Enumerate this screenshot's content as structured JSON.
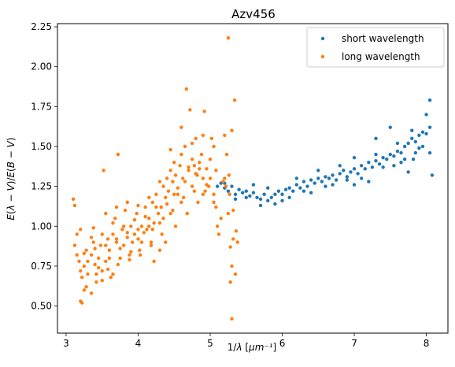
{
  "chart_data": {
    "type": "scatter",
    "title": "Azv456",
    "xlabel": "1/λ [μm⁻¹]",
    "ylabel": "E(λ − V)/E(B − V)",
    "xlim": [
      2.88,
      8.3
    ],
    "ylim": [
      0.33,
      2.27
    ],
    "xticks": [
      3,
      4,
      5,
      6,
      7,
      8
    ],
    "yticks": [
      0.5,
      0.75,
      1.0,
      1.25,
      1.5,
      1.75,
      2.0,
      2.25
    ],
    "xtick_labels": [
      "3",
      "4",
      "5",
      "6",
      "7",
      "8"
    ],
    "ytick_labels": [
      "0.50",
      "0.75",
      "1.00",
      "1.25",
      "1.50",
      "1.75",
      "2.00",
      "2.25"
    ],
    "legend_position": "top-right",
    "series": [
      {
        "name": "short wavelength",
        "color": "#1f77b4",
        "points": [
          [
            5.1,
            1.25
          ],
          [
            5.15,
            1.27
          ],
          [
            5.2,
            1.24
          ],
          [
            5.25,
            1.22
          ],
          [
            5.3,
            1.25
          ],
          [
            5.35,
            1.2
          ],
          [
            5.4,
            1.23
          ],
          [
            5.45,
            1.21
          ],
          [
            5.5,
            1.22
          ],
          [
            5.55,
            1.19
          ],
          [
            5.6,
            1.21
          ],
          [
            5.65,
            1.18
          ],
          [
            5.7,
            1.17
          ],
          [
            5.75,
            1.2
          ],
          [
            5.8,
            1.16
          ],
          [
            5.85,
            1.18
          ],
          [
            5.9,
            1.2
          ],
          [
            5.95,
            1.22
          ],
          [
            6.0,
            1.2
          ],
          [
            6.05,
            1.23
          ],
          [
            6.1,
            1.24
          ],
          [
            6.15,
            1.22
          ],
          [
            6.2,
            1.26
          ],
          [
            6.25,
            1.24
          ],
          [
            6.3,
            1.28
          ],
          [
            6.35,
            1.25
          ],
          [
            6.4,
            1.29
          ],
          [
            6.45,
            1.27
          ],
          [
            6.5,
            1.3
          ],
          [
            6.55,
            1.28
          ],
          [
            6.6,
            1.31
          ],
          [
            6.65,
            1.3
          ],
          [
            6.7,
            1.32
          ],
          [
            6.75,
            1.29
          ],
          [
            6.8,
            1.33
          ],
          [
            6.85,
            1.35
          ],
          [
            6.9,
            1.31
          ],
          [
            6.95,
            1.34
          ],
          [
            7.0,
            1.36
          ],
          [
            7.05,
            1.33
          ],
          [
            7.1,
            1.38
          ],
          [
            7.15,
            1.36
          ],
          [
            7.2,
            1.4
          ],
          [
            7.25,
            1.37
          ],
          [
            7.3,
            1.41
          ],
          [
            7.35,
            1.39
          ],
          [
            7.4,
            1.43
          ],
          [
            7.45,
            1.42
          ],
          [
            7.5,
            1.45
          ],
          [
            7.55,
            1.44
          ],
          [
            7.6,
            1.47
          ],
          [
            7.65,
            1.46
          ],
          [
            7.7,
            1.5
          ],
          [
            7.75,
            1.52
          ],
          [
            7.8,
            1.55
          ],
          [
            7.85,
            1.53
          ],
          [
            7.9,
            1.57
          ],
          [
            7.95,
            1.59
          ],
          [
            8.0,
            1.58
          ],
          [
            8.05,
            1.62
          ],
          [
            5.2,
            1.27
          ],
          [
            5.5,
            1.18
          ],
          [
            5.7,
            1.13
          ],
          [
            6.0,
            1.16
          ],
          [
            6.3,
            1.22
          ],
          [
            6.6,
            1.25
          ],
          [
            6.9,
            1.29
          ],
          [
            7.1,
            1.3
          ],
          [
            7.4,
            1.37
          ],
          [
            7.7,
            1.42
          ],
          [
            7.9,
            1.49
          ],
          [
            6.2,
            1.3
          ],
          [
            6.5,
            1.35
          ],
          [
            6.8,
            1.38
          ],
          [
            7.0,
            1.43
          ],
          [
            7.3,
            1.45
          ],
          [
            7.6,
            1.52
          ],
          [
            7.8,
            1.6
          ],
          [
            8.0,
            1.7
          ],
          [
            8.05,
            1.79
          ],
          [
            7.5,
            1.62
          ],
          [
            7.3,
            1.55
          ],
          [
            7.2,
            1.28
          ],
          [
            7.65,
            1.4
          ],
          [
            7.75,
            1.34
          ],
          [
            8.08,
            1.32
          ],
          [
            8.05,
            1.46
          ],
          [
            7.95,
            1.5
          ],
          [
            7.82,
            1.42
          ],
          [
            6.4,
            1.21
          ],
          [
            5.6,
            1.26
          ],
          [
            5.8,
            1.24
          ],
          [
            5.9,
            1.14
          ],
          [
            6.1,
            1.18
          ],
          [
            6.7,
            1.26
          ],
          [
            7.0,
            1.26
          ],
          [
            7.55,
            1.38
          ],
          [
            7.85,
            1.46
          ],
          [
            5.35,
            1.17
          ]
        ]
      },
      {
        "name": "long wavelength",
        "color": "#ff7f0e",
        "points": [
          [
            3.1,
            1.17
          ],
          [
            3.12,
            1.13
          ],
          [
            3.15,
            0.95
          ],
          [
            3.18,
            0.78
          ],
          [
            3.2,
            0.72
          ],
          [
            3.22,
            0.68
          ],
          [
            3.25,
            0.6
          ],
          [
            3.22,
            0.52
          ],
          [
            3.2,
            0.53
          ],
          [
            3.25,
            0.75
          ],
          [
            3.28,
            0.85
          ],
          [
            3.3,
            0.7
          ],
          [
            3.35,
            0.82
          ],
          [
            3.38,
            0.9
          ],
          [
            3.4,
            0.76
          ],
          [
            3.42,
            0.65
          ],
          [
            3.45,
            0.8
          ],
          [
            3.48,
            0.88
          ],
          [
            3.5,
            0.72
          ],
          [
            3.52,
            1.35
          ],
          [
            3.55,
            0.78
          ],
          [
            3.58,
            0.92
          ],
          [
            3.6,
            0.85
          ],
          [
            3.62,
            0.68
          ],
          [
            3.65,
            0.95
          ],
          [
            3.68,
            1.05
          ],
          [
            3.7,
            0.9
          ],
          [
            3.72,
            1.45
          ],
          [
            3.75,
            0.8
          ],
          [
            3.78,
            0.98
          ],
          [
            3.8,
            0.88
          ],
          [
            3.82,
            1.1
          ],
          [
            3.85,
            0.93
          ],
          [
            3.88,
            0.82
          ],
          [
            3.9,
            1.0
          ],
          [
            3.92,
            0.9
          ],
          [
            3.95,
            0.95
          ],
          [
            3.98,
            1.08
          ],
          [
            4.0,
            0.92
          ],
          [
            4.02,
            0.85
          ],
          [
            4.05,
            1.0
          ],
          [
            4.08,
            0.96
          ],
          [
            4.1,
            1.12
          ],
          [
            4.12,
            0.98
          ],
          [
            4.15,
            1.05
          ],
          [
            4.18,
            0.9
          ],
          [
            4.2,
            1.15
          ],
          [
            4.22,
            1.02
          ],
          [
            4.25,
            1.2
          ],
          [
            4.28,
            1.08
          ],
          [
            4.3,
            0.85
          ],
          [
            4.32,
            1.12
          ],
          [
            4.35,
            1.25
          ],
          [
            4.38,
            1.18
          ],
          [
            4.4,
            1.3
          ],
          [
            4.42,
            1.22
          ],
          [
            4.45,
            1.35
          ],
          [
            4.48,
            1.28
          ],
          [
            4.5,
            1.4
          ],
          [
            4.52,
            1.32
          ],
          [
            4.55,
            1.2
          ],
          [
            4.58,
            1.38
          ],
          [
            4.6,
            1.45
          ],
          [
            4.62,
            1.3
          ],
          [
            4.65,
            1.5
          ],
          [
            4.67,
            1.86
          ],
          [
            4.7,
            1.35
          ],
          [
            4.72,
            1.73
          ],
          [
            4.75,
            1.42
          ],
          [
            4.78,
            1.38
          ],
          [
            4.8,
            1.55
          ],
          [
            4.82,
            1.32
          ],
          [
            4.85,
            1.4
          ],
          [
            4.88,
            1.45
          ],
          [
            4.9,
            1.3
          ],
          [
            4.92,
            1.72
          ],
          [
            4.95,
            1.36
          ],
          [
            4.98,
            1.25
          ],
          [
            5.0,
            1.3
          ],
          [
            5.02,
            1.55
          ],
          [
            5.05,
            1.2
          ],
          [
            5.08,
            1.12
          ],
          [
            5.1,
            1.0
          ],
          [
            5.12,
            0.95
          ],
          [
            5.15,
            1.05
          ],
          [
            5.18,
            1.28
          ],
          [
            5.2,
            1.3
          ],
          [
            5.22,
            1.25
          ],
          [
            5.25,
            2.18
          ],
          [
            5.27,
            1.2
          ],
          [
            5.28,
            0.87
          ],
          [
            5.3,
            0.75
          ],
          [
            5.3,
            0.42
          ],
          [
            5.32,
            1.1
          ],
          [
            5.34,
            1.79
          ],
          [
            5.35,
            0.7
          ],
          [
            5.36,
            0.97
          ],
          [
            5.38,
            0.9
          ],
          [
            3.15,
            0.82
          ],
          [
            3.3,
            0.78
          ],
          [
            3.45,
            0.74
          ],
          [
            3.6,
            0.8
          ],
          [
            3.75,
            0.86
          ],
          [
            3.9,
            0.84
          ],
          [
            4.05,
            0.9
          ],
          [
            4.2,
            0.98
          ],
          [
            4.35,
            1.05
          ],
          [
            4.5,
            1.2
          ],
          [
            4.65,
            1.28
          ],
          [
            4.8,
            1.33
          ],
          [
            4.95,
            1.26
          ],
          [
            3.2,
            0.98
          ],
          [
            3.35,
            0.93
          ],
          [
            3.5,
            0.95
          ],
          [
            3.65,
            1.02
          ],
          [
            3.8,
            1.0
          ],
          [
            3.95,
            1.04
          ],
          [
            4.1,
            1.06
          ],
          [
            4.25,
            1.12
          ],
          [
            4.4,
            1.14
          ],
          [
            4.55,
            1.24
          ],
          [
            4.7,
            1.37
          ],
          [
            4.85,
            1.36
          ],
          [
            5.0,
            1.42
          ],
          [
            3.28,
            0.62
          ],
          [
            3.42,
            0.7
          ],
          [
            3.58,
            0.73
          ],
          [
            3.72,
            0.76
          ],
          [
            3.88,
            0.79
          ],
          [
            4.03,
            0.82
          ],
          [
            4.18,
            0.88
          ],
          [
            4.33,
            0.95
          ],
          [
            4.48,
            1.1
          ],
          [
            4.63,
            1.18
          ],
          [
            4.78,
            1.22
          ],
          [
            4.93,
            1.22
          ],
          [
            5.08,
            1.35
          ],
          [
            5.2,
            1.57
          ],
          [
            5.23,
            1.45
          ],
          [
            5.26,
            1.32
          ],
          [
            3.38,
            0.99
          ],
          [
            3.55,
            1.08
          ],
          [
            3.7,
            1.12
          ],
          [
            3.85,
            1.15
          ],
          [
            4.0,
            1.13
          ],
          [
            4.15,
            1.18
          ],
          [
            4.3,
            1.28
          ],
          [
            4.45,
            1.48
          ],
          [
            4.6,
            1.62
          ],
          [
            4.75,
            1.52
          ],
          [
            4.9,
            1.57
          ],
          [
            5.05,
            1.5
          ],
          [
            3.12,
            0.88
          ],
          [
            3.25,
            0.83
          ],
          [
            3.4,
            0.86
          ],
          [
            3.55,
            0.88
          ],
          [
            3.7,
            0.92
          ],
          [
            3.85,
            0.96
          ],
          [
            4.0,
            0.98
          ],
          [
            4.15,
            1.0
          ],
          [
            4.3,
            1.02
          ],
          [
            4.45,
            1.08
          ],
          [
            4.6,
            1.15
          ],
          [
            4.75,
            1.25
          ],
          [
            4.9,
            1.2
          ],
          [
            5.05,
            1.15
          ],
          [
            5.3,
            1.6
          ],
          [
            5.25,
            1.08
          ],
          [
            5.32,
            0.92
          ],
          [
            5.28,
            0.65
          ],
          [
            3.35,
            0.58
          ],
          [
            3.5,
            0.66
          ],
          [
            3.65,
            0.7
          ],
          [
            4.22,
            0.78
          ],
          [
            4.38,
            0.9
          ],
          [
            4.52,
            1.0
          ],
          [
            4.68,
            1.08
          ],
          [
            4.83,
            1.15
          ]
        ]
      }
    ]
  }
}
